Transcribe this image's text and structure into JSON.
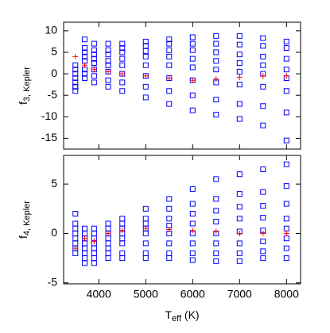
{
  "chart_data": [
    {
      "type": "scatter",
      "ylabel": "f",
      "ylabel_sub": "3, Kepler",
      "x": [
        3500,
        3700,
        3900,
        4200,
        4500,
        5000,
        5500,
        6000,
        6500,
        7000,
        7500,
        8000
      ],
      "xlim": [
        3250,
        8300
      ],
      "xticks": [
        4000,
        5000,
        6000,
        7000,
        8000
      ],
      "show_xtick_labels": false,
      "ylim": [
        -17.5,
        12
      ],
      "yticks": [
        -15,
        -10,
        -5,
        0,
        5,
        10
      ],
      "series": [
        {
          "color": "#0000ff",
          "marker": "square",
          "values": [
            2,
            8,
            7,
            7,
            7,
            7.5,
            8,
            8.5,
            8.8,
            8.8,
            8.3,
            7.5
          ]
        },
        {
          "color": "#0000ff",
          "marker": "square",
          "values": [
            1,
            6,
            5.5,
            5.5,
            6,
            6.5,
            7,
            7,
            7,
            6.8,
            6.5,
            6
          ]
        },
        {
          "color": "#0000ff",
          "marker": "square",
          "values": [
            0,
            5,
            4.5,
            4.5,
            5,
            5.3,
            5.5,
            5.5,
            5,
            4.5,
            4,
            3.5
          ]
        },
        {
          "color": "#0000ff",
          "marker": "square",
          "values": [
            -1,
            4,
            3.5,
            3,
            3.5,
            4,
            4,
            3.5,
            3,
            2.5,
            2,
            1
          ]
        },
        {
          "color": "#0000ff",
          "marker": "square",
          "values": [
            -2,
            3,
            2.5,
            2,
            2,
            2,
            2,
            1.5,
            1,
            0.5,
            0,
            -1
          ]
        },
        {
          "color": "#0000ff",
          "marker": "square",
          "values": [
            -3,
            1,
            1,
            0.5,
            0,
            -0.5,
            -1,
            -1.5,
            -2,
            -2.5,
            -3,
            -4
          ]
        },
        {
          "color": "#0000ff",
          "marker": "square",
          "values": [
            -4,
            0,
            -0.5,
            -1.5,
            -2,
            -3,
            -4,
            -5,
            -6,
            -7,
            -7.5,
            -9
          ]
        },
        {
          "color": "#0000ff",
          "marker": "square",
          "values": [
            -3,
            -1,
            -2,
            -3,
            -4,
            -5.5,
            -7,
            -8.5,
            -9.5,
            -10.5,
            -12,
            -15.5
          ]
        },
        {
          "color": "#ff0000",
          "marker": "plus",
          "values": [
            4,
            2,
            1,
            0.5,
            0,
            -0.5,
            -1,
            -1.5,
            -1.2,
            -0.8,
            -0.5,
            -0.5
          ]
        }
      ]
    },
    {
      "type": "scatter",
      "ylabel": "f",
      "ylabel_sub": "4, Kepler",
      "xlabel": "T",
      "xlabel_sub": "eff",
      "xlabel_unit": " (K)",
      "x": [
        3500,
        3700,
        3900,
        4200,
        4500,
        5000,
        5500,
        6000,
        6500,
        7000,
        7500,
        8000
      ],
      "xlim": [
        3250,
        8300
      ],
      "xticks": [
        4000,
        5000,
        6000,
        7000,
        8000
      ],
      "show_xtick_labels": true,
      "ylim": [
        -5.1,
        7.9
      ],
      "yticks": [
        -5,
        0,
        5
      ],
      "series": [
        {
          "color": "#0000ff",
          "marker": "square",
          "values": [
            2,
            0.5,
            0.5,
            1,
            1.5,
            2.5,
            3.5,
            4.5,
            5.5,
            6,
            6.5,
            7
          ]
        },
        {
          "color": "#0000ff",
          "marker": "square",
          "values": [
            1,
            0,
            0,
            0.5,
            1,
            1.5,
            2.5,
            3,
            3.5,
            4,
            4.2,
            4.8
          ]
        },
        {
          "color": "#0000ff",
          "marker": "square",
          "values": [
            0.5,
            -0.5,
            -0.5,
            0,
            0.5,
            1,
            1.5,
            2,
            2.3,
            2.7,
            2.8,
            3
          ]
        },
        {
          "color": "#0000ff",
          "marker": "square",
          "values": [
            0,
            -1,
            -1,
            -0.5,
            0,
            0.5,
            0.8,
            1,
            1.2,
            1.5,
            1.6,
            1.5
          ]
        },
        {
          "color": "#0000ff",
          "marker": "square",
          "values": [
            -0.5,
            -1.5,
            -1.5,
            -1,
            -0.5,
            0,
            0,
            0,
            0,
            0.2,
            0.3,
            0.5
          ]
        },
        {
          "color": "#0000ff",
          "marker": "square",
          "values": [
            -1,
            -2,
            -2,
            -1.5,
            -1,
            -1,
            -1,
            -1,
            -1,
            -1,
            -0.8,
            -0.5
          ]
        },
        {
          "color": "#0000ff",
          "marker": "square",
          "values": [
            -1.5,
            -2.5,
            -2.5,
            -2,
            -2,
            -2,
            -2,
            -2,
            -2,
            -2,
            -1.8,
            -1.5
          ]
        },
        {
          "color": "#0000ff",
          "marker": "square",
          "values": [
            -2,
            -3,
            -3,
            -2.5,
            -2.5,
            -2.5,
            -2.5,
            -2.7,
            -2.8,
            -2.8,
            -2.5,
            -2.5
          ]
        },
        {
          "color": "#ff0000",
          "marker": "plus",
          "values": [
            -1.5,
            -0.5,
            -0.8,
            0,
            0.3,
            0.5,
            0.4,
            0.3,
            0.2,
            0,
            0,
            0
          ]
        }
      ]
    }
  ]
}
